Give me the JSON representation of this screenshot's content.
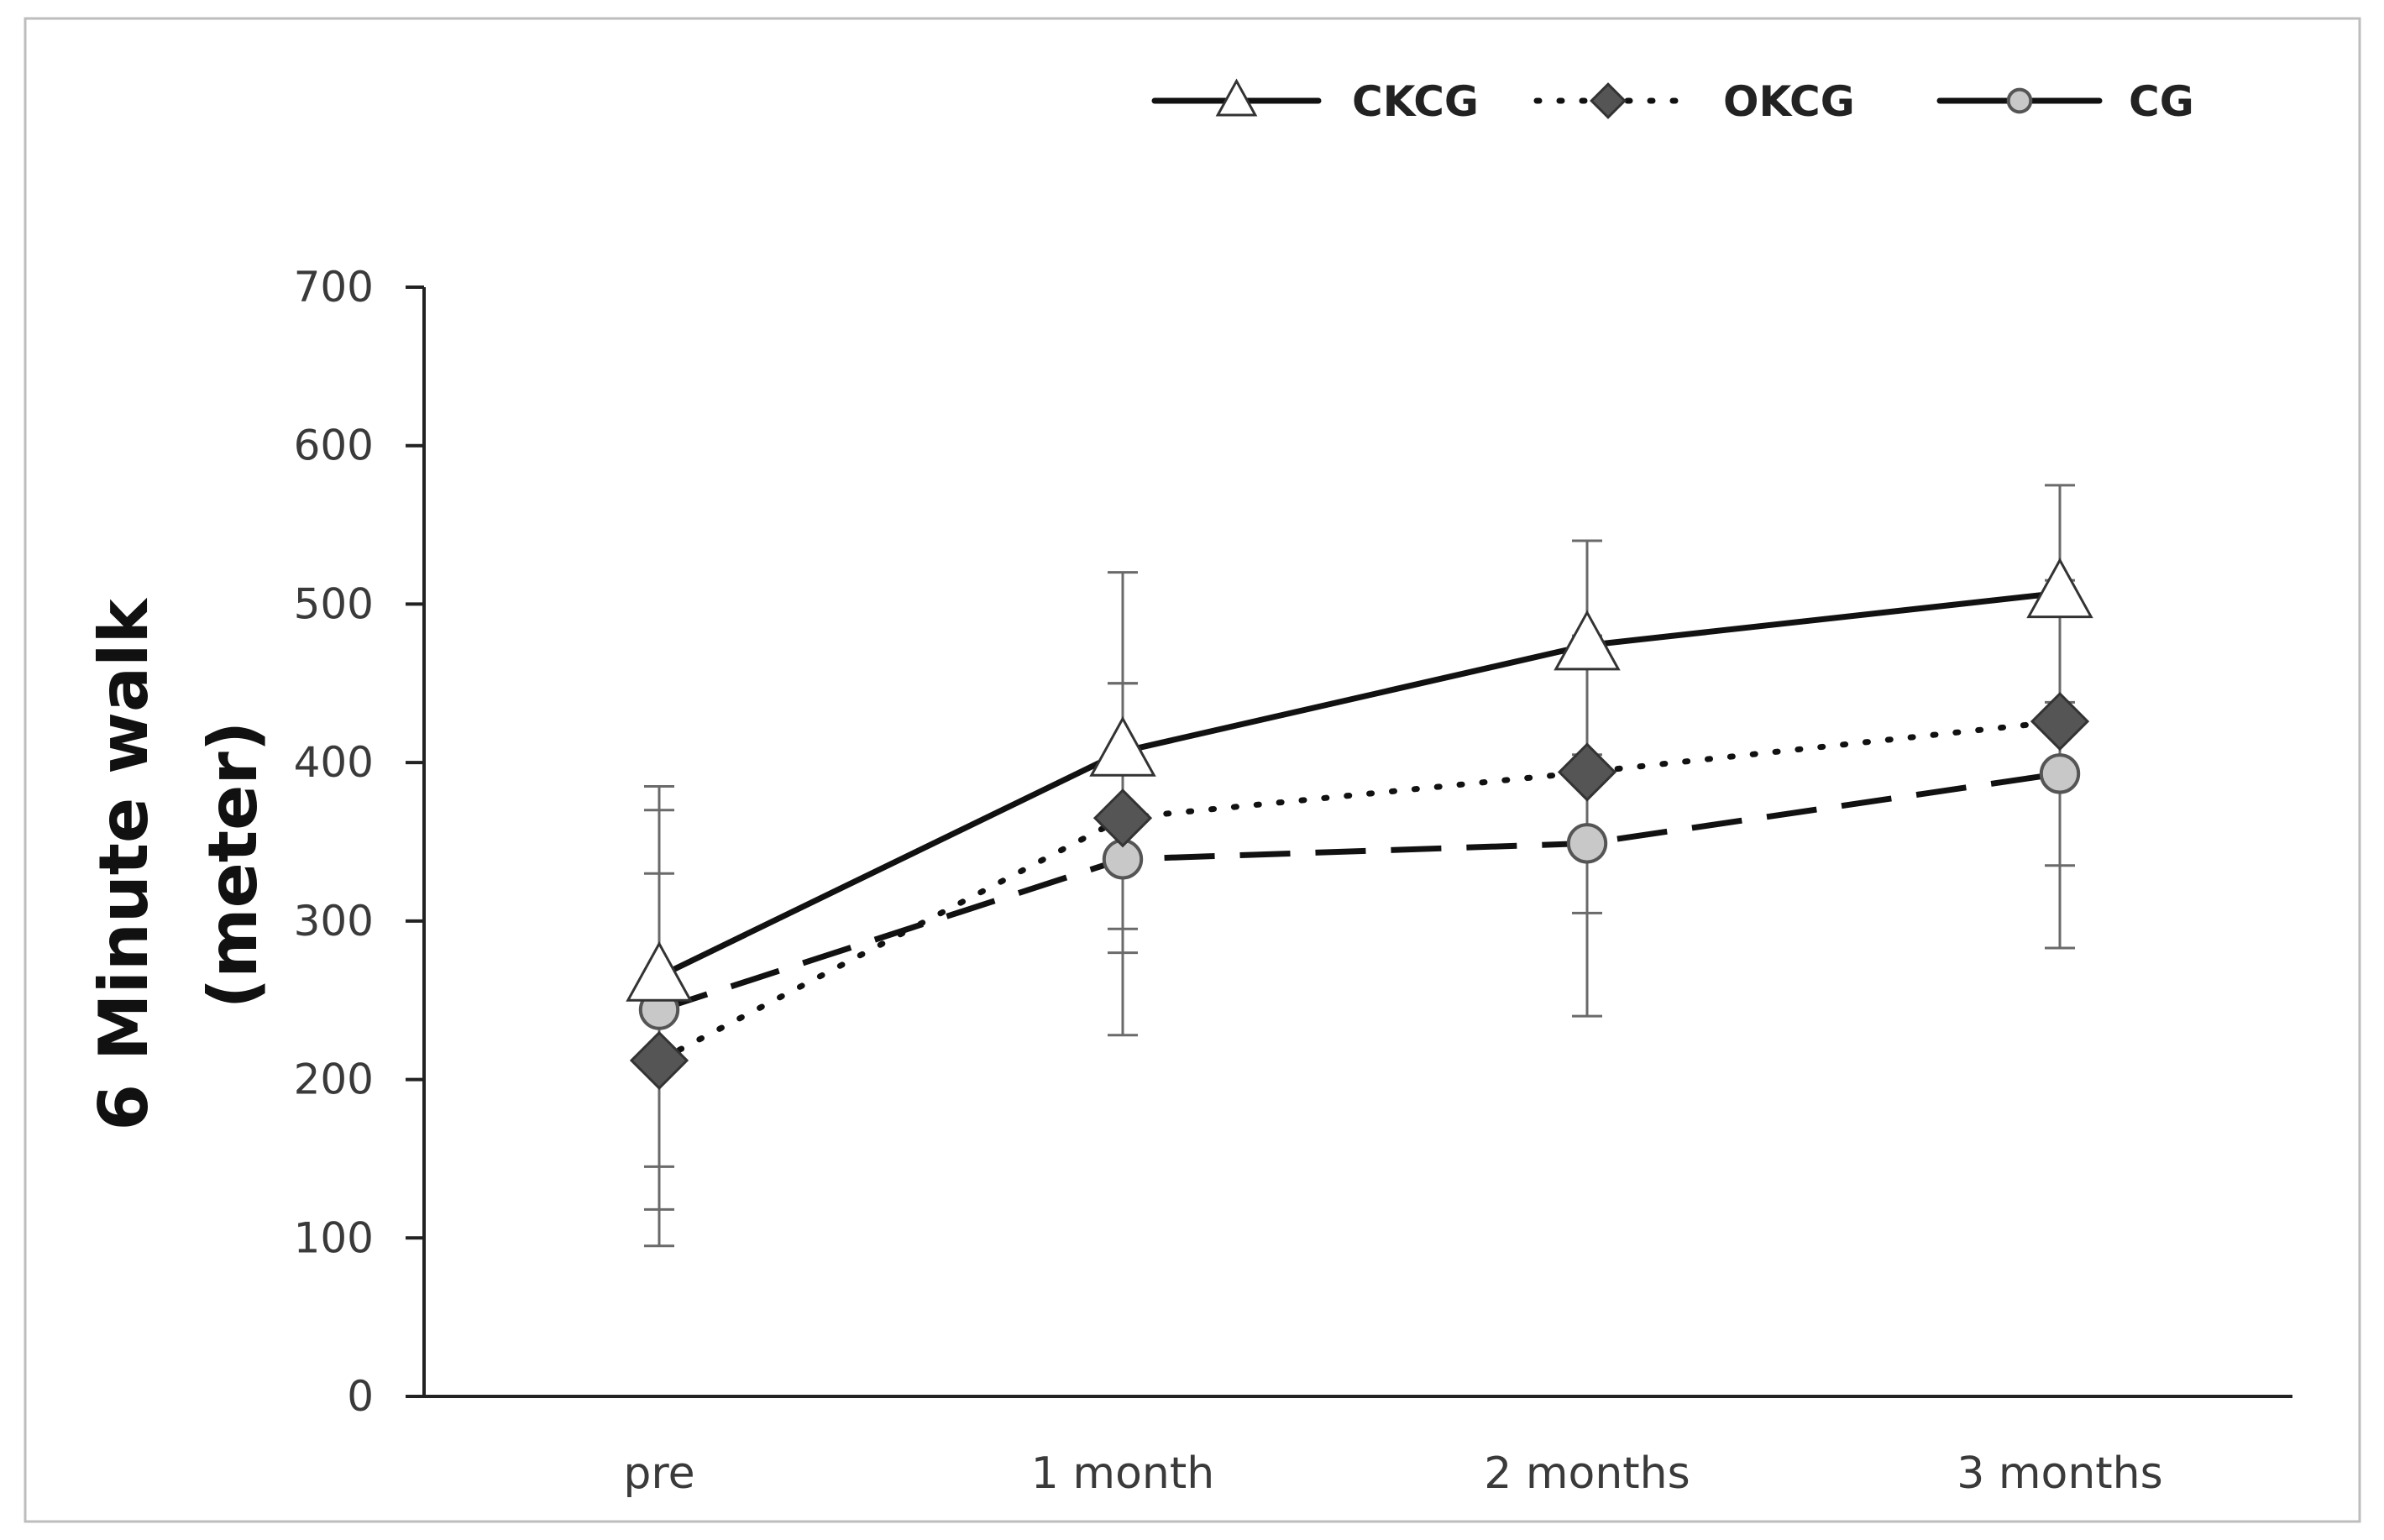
{
  "chart_data": {
    "type": "line",
    "title": "",
    "xlabel": "",
    "ylabel_lines": [
      "6 Minute walk",
      "(meter)"
    ],
    "categories": [
      "pre",
      "1 month",
      "2 months",
      "3 months"
    ],
    "ylim": [
      0,
      700
    ],
    "yticks": [
      0,
      100,
      200,
      300,
      400,
      500,
      600,
      700
    ],
    "ytick_labels": [
      "0",
      "100",
      "200",
      "300",
      "400",
      "500",
      "600",
      "700"
    ],
    "grid": false,
    "legend_position": "top-right",
    "series": [
      {
        "name": "CKCG",
        "line_style": "solid",
        "marker": "triangle",
        "marker_fill": "#ffffff",
        "color": "#111111",
        "values": [
          265,
          407,
          474,
          507
        ],
        "error_low": [
          145,
          295,
          405,
          438
        ],
        "error_high": [
          385,
          520,
          540,
          575
        ]
      },
      {
        "name": "OKCG",
        "line_style": "dotted",
        "marker": "diamond",
        "marker_fill": "#555555",
        "color": "#111111",
        "values": [
          212,
          365,
          394,
          426
        ],
        "error_low": [
          95,
          280,
          305,
          335
        ],
        "error_high": [
          330,
          450,
          480,
          515
        ]
      },
      {
        "name": "CG",
        "line_style": "dashed",
        "marker": "circle",
        "marker_fill": "#c8c8c8",
        "color": "#111111",
        "values": [
          244,
          339,
          349,
          393
        ],
        "error_low": [
          118,
          228,
          240,
          283
        ],
        "error_high": [
          370,
          450,
          460,
          505
        ]
      }
    ]
  }
}
